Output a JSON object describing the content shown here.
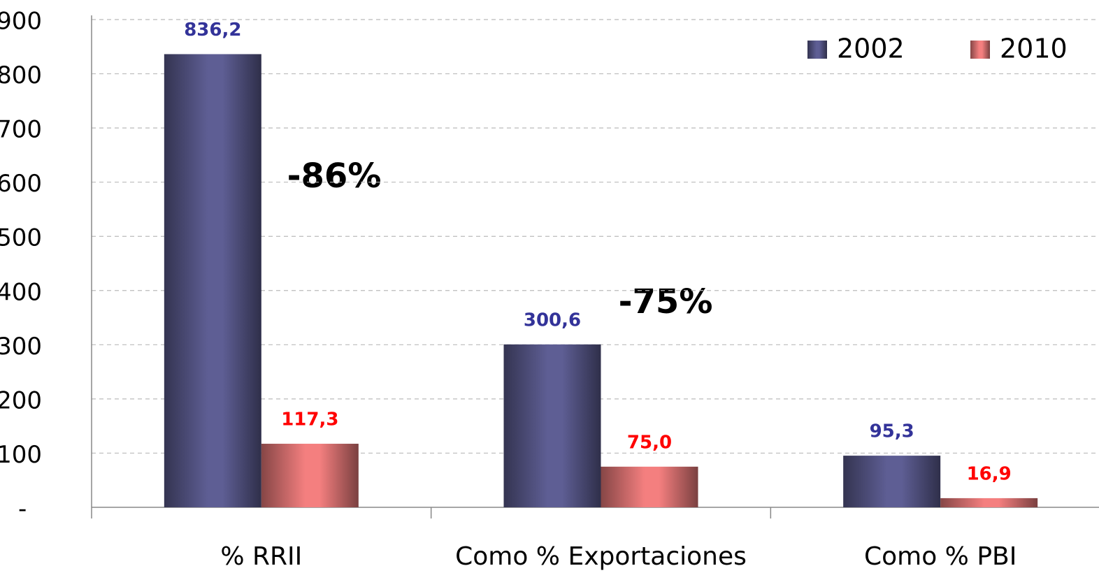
{
  "chart_data": {
    "type": "bar",
    "categories": [
      "% RRII",
      "Como % Exportaciones",
      "Como % PBI"
    ],
    "series": [
      {
        "name": "2002",
        "color": "#5e5e94",
        "label_color": "#333399",
        "values": [
          836.2,
          300.6,
          95.3
        ],
        "value_labels": [
          "836,2",
          "300,6",
          "95,3"
        ]
      },
      {
        "name": "2010",
        "color": "#f47f7f",
        "label_color": "#ff0000",
        "values": [
          117.3,
          75.0,
          16.9
        ],
        "value_labels": [
          "117,3",
          "75,0",
          "16,9"
        ]
      }
    ],
    "ylim": [
      0,
      900
    ],
    "yticks": [
      {
        "value": 0,
        "label": "-"
      },
      100,
      200,
      300,
      400,
      500,
      600,
      700,
      800,
      900
    ],
    "grid": true,
    "legend": "top-right",
    "annotations": [
      "-86%",
      "-75%"
    ]
  }
}
